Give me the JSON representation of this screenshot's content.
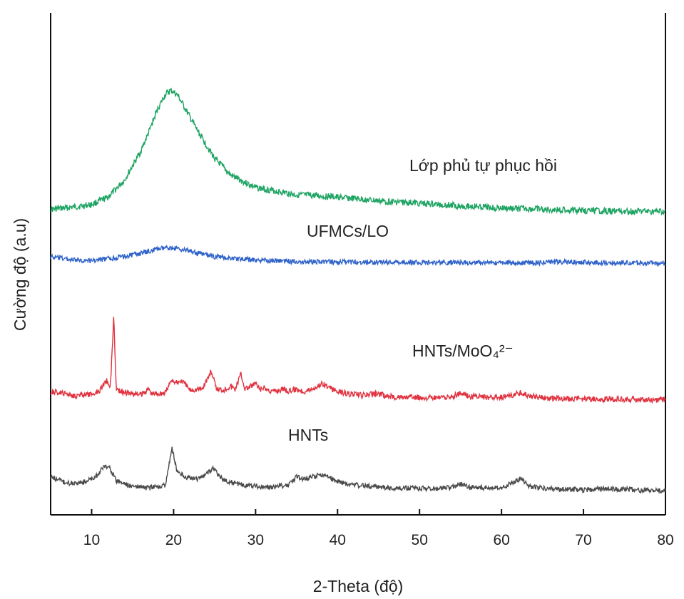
{
  "chart_data": {
    "type": "line",
    "title": "",
    "xlabel": "2-Theta (độ)",
    "ylabel": "Cường độ (a.u)",
    "xlim": [
      5,
      80
    ],
    "x_ticks": [
      10,
      20,
      30,
      40,
      50,
      60,
      70,
      80
    ],
    "grid": false,
    "legend": "none",
    "series": [
      {
        "name": "Lớp phủ tự phục hồi",
        "color": "#1fa463",
        "peaks": [
          [
            5,
            150
          ],
          [
            8,
            160
          ],
          [
            10,
            170
          ],
          [
            12,
            200
          ],
          [
            14,
            270
          ],
          [
            16,
            390
          ],
          [
            17,
            470
          ],
          [
            18,
            560
          ],
          [
            19,
            625
          ],
          [
            19.7,
            640
          ],
          [
            20.5,
            620
          ],
          [
            21.5,
            560
          ],
          [
            23,
            470
          ],
          [
            25,
            360
          ],
          [
            27,
            290
          ],
          [
            30,
            240
          ],
          [
            35,
            210
          ],
          [
            38,
            205
          ],
          [
            40,
            200
          ],
          [
            45,
            185
          ],
          [
            50,
            175
          ],
          [
            55,
            165
          ],
          [
            60,
            155
          ],
          [
            65,
            150
          ],
          [
            70,
            145
          ],
          [
            75,
            142
          ],
          [
            80,
            140
          ]
        ]
      },
      {
        "name": "UFMCs/LO",
        "color": "#2f63c9",
        "peaks": [
          [
            5,
            85
          ],
          [
            8,
            70
          ],
          [
            10,
            68
          ],
          [
            13,
            80
          ],
          [
            16,
            100
          ],
          [
            18,
            118
          ],
          [
            19.5,
            125
          ],
          [
            21,
            118
          ],
          [
            23,
            100
          ],
          [
            25,
            85
          ],
          [
            30,
            70
          ],
          [
            35,
            65
          ],
          [
            40,
            62
          ],
          [
            50,
            60
          ],
          [
            60,
            58
          ],
          [
            65,
            58
          ],
          [
            67,
            63
          ],
          [
            70,
            60
          ],
          [
            75,
            58
          ],
          [
            80,
            57
          ]
        ]
      },
      {
        "name": "HNTs/MoO₄²⁻",
        "color": "#e0323f",
        "peaks": [
          [
            5,
            100
          ],
          [
            8,
            85
          ],
          [
            10,
            88
          ],
          [
            11,
            105
          ],
          [
            11.8,
            140
          ],
          [
            12.3,
            120
          ],
          [
            12.7,
            380
          ],
          [
            13.0,
            110
          ],
          [
            14,
            95
          ],
          [
            16,
            88
          ],
          [
            17,
            110
          ],
          [
            17.3,
            90
          ],
          [
            19,
            95
          ],
          [
            19.8,
            145
          ],
          [
            20.3,
            130
          ],
          [
            21,
            140
          ],
          [
            22,
            105
          ],
          [
            23.5,
            110
          ],
          [
            24.6,
            175
          ],
          [
            25.2,
            110
          ],
          [
            26,
            105
          ],
          [
            27,
            120
          ],
          [
            27.5,
            108
          ],
          [
            28.2,
            165
          ],
          [
            28.7,
            110
          ],
          [
            29.3,
            115
          ],
          [
            30,
            130
          ],
          [
            30.5,
            105
          ],
          [
            31,
            112
          ],
          [
            32,
            100
          ],
          [
            33,
            105
          ],
          [
            33.5,
            112
          ],
          [
            34,
            100
          ],
          [
            35,
            108
          ],
          [
            36,
            100
          ],
          [
            37,
            110
          ],
          [
            38.2,
            130
          ],
          [
            39,
            112
          ],
          [
            40,
            100
          ],
          [
            41.5,
            90
          ],
          [
            43,
            85
          ],
          [
            44.8,
            92
          ],
          [
            46,
            82
          ],
          [
            48,
            78
          ],
          [
            50,
            78
          ],
          [
            52,
            75
          ],
          [
            54,
            80
          ],
          [
            55,
            95
          ],
          [
            56,
            82
          ],
          [
            58,
            78
          ],
          [
            60,
            78
          ],
          [
            62.4,
            95
          ],
          [
            63.5,
            82
          ],
          [
            66,
            75
          ],
          [
            70,
            72
          ],
          [
            75,
            70
          ],
          [
            80,
            68
          ]
        ]
      },
      {
        "name": "HNTs",
        "color": "#4a4a4a",
        "peaks": [
          [
            5,
            95
          ],
          [
            7,
            80
          ],
          [
            9,
            82
          ],
          [
            10.5,
            95
          ],
          [
            11.5,
            120
          ],
          [
            12.2,
            118
          ],
          [
            13,
            85
          ],
          [
            15,
            72
          ],
          [
            17,
            68
          ],
          [
            19,
            75
          ],
          [
            19.8,
            165
          ],
          [
            20.4,
            110
          ],
          [
            21.5,
            95
          ],
          [
            23,
            90
          ],
          [
            24.8,
            115
          ],
          [
            26,
            88
          ],
          [
            28,
            78
          ],
          [
            30,
            72
          ],
          [
            32,
            70
          ],
          [
            34,
            75
          ],
          [
            35,
            95
          ],
          [
            36,
            90
          ],
          [
            37.5,
            98
          ],
          [
            38.3,
            100
          ],
          [
            39.5,
            88
          ],
          [
            41,
            78
          ],
          [
            44,
            72
          ],
          [
            48,
            68
          ],
          [
            52,
            67
          ],
          [
            54,
            70
          ],
          [
            55,
            78
          ],
          [
            56,
            70
          ],
          [
            60,
            68
          ],
          [
            62.4,
            92
          ],
          [
            63.3,
            72
          ],
          [
            66,
            66
          ],
          [
            70,
            64
          ],
          [
            73.5,
            66
          ],
          [
            76,
            64
          ],
          [
            80,
            62
          ]
        ]
      }
    ]
  }
}
